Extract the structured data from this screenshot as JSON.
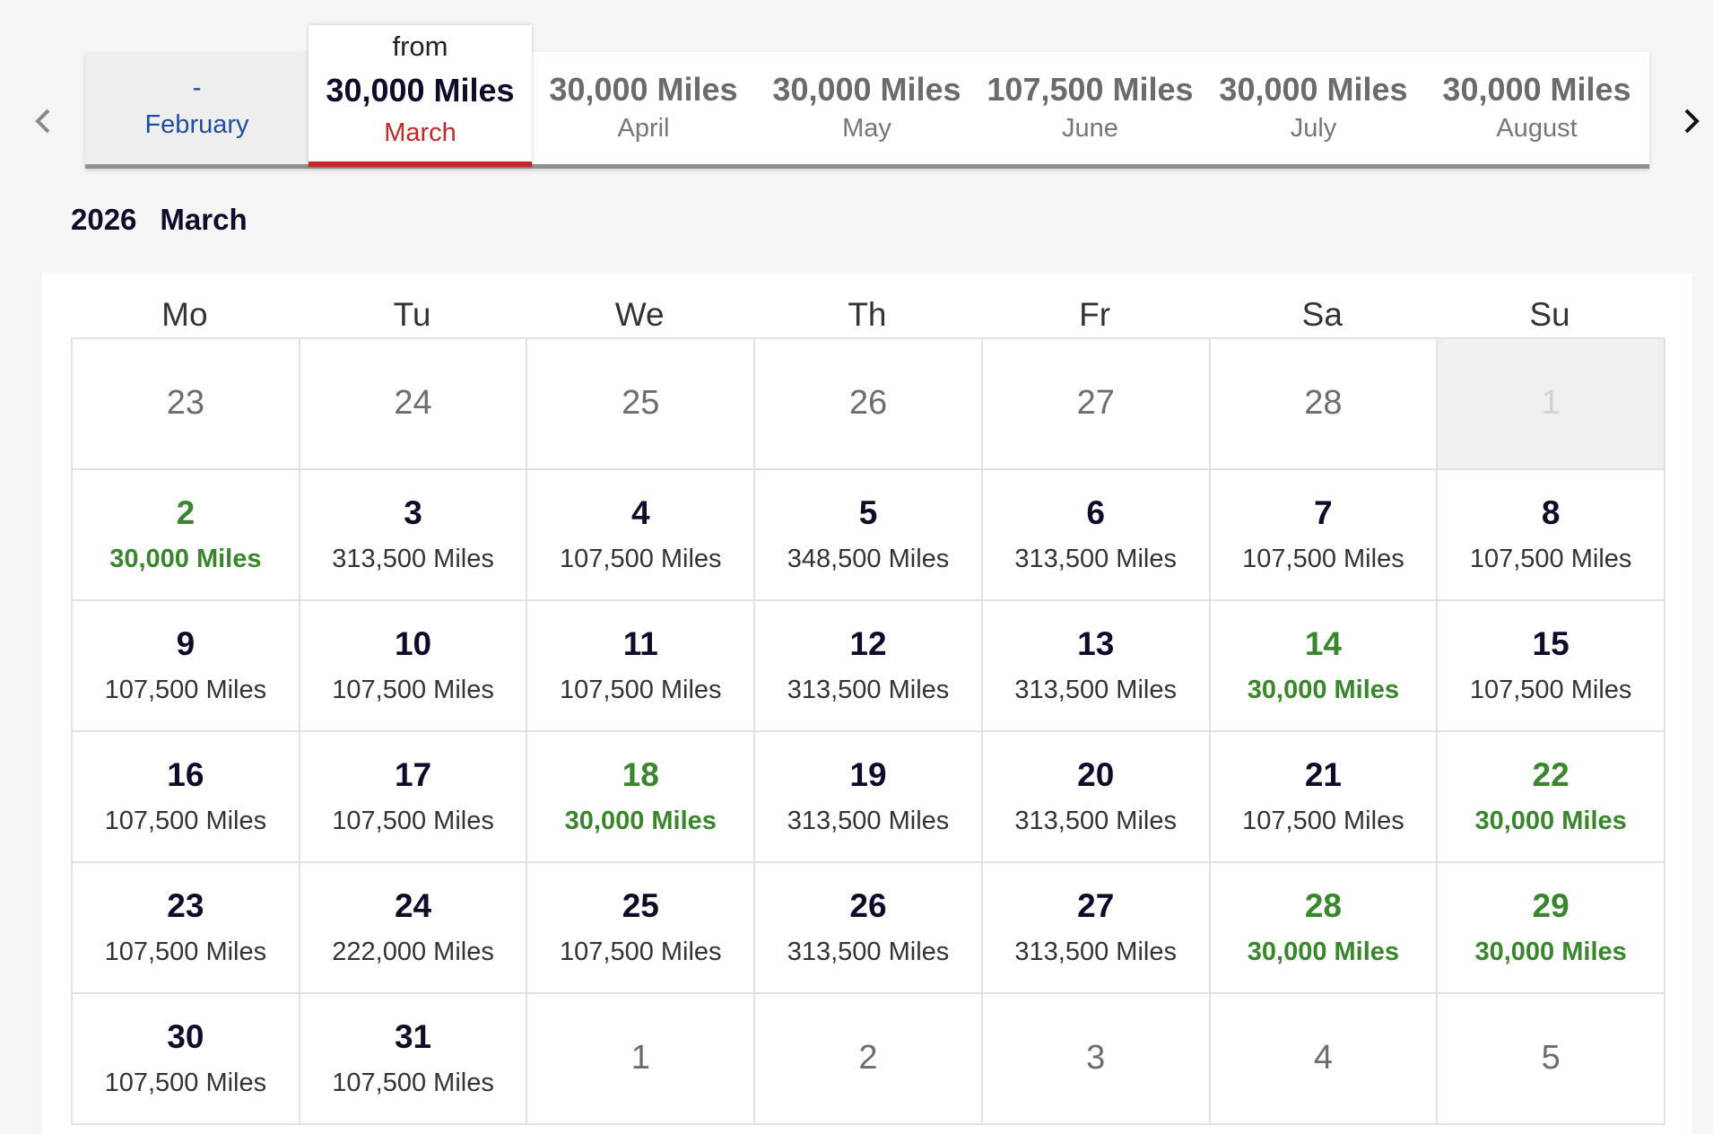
{
  "month_tabs": {
    "prev": {
      "dash": "-",
      "month": "February"
    },
    "active": {
      "from": "from",
      "miles": "30,000 Miles",
      "month": "March"
    },
    "others": [
      {
        "miles": "30,000 Miles",
        "month": "April"
      },
      {
        "miles": "30,000 Miles",
        "month": "May"
      },
      {
        "miles": "107,500 Miles",
        "month": "June"
      },
      {
        "miles": "30,000 Miles",
        "month": "July"
      },
      {
        "miles": "30,000 Miles",
        "month": "August"
      }
    ]
  },
  "period": {
    "year": "2026",
    "month": "March"
  },
  "colors": {
    "accent_red": "#c8262a",
    "deal_green": "#3a862d",
    "link_blue": "#1f4e9e",
    "navy": "#0d0d2b"
  },
  "icons": {
    "prev": "chevron-left-icon",
    "next": "chevron-right-icon"
  },
  "weekdays": [
    "Mo",
    "Tu",
    "We",
    "Th",
    "Fr",
    "Sa",
    "Su"
  ],
  "days": [
    {
      "day": "23",
      "price": "",
      "state": "other"
    },
    {
      "day": "24",
      "price": "",
      "state": "other"
    },
    {
      "day": "25",
      "price": "",
      "state": "other"
    },
    {
      "day": "26",
      "price": "",
      "state": "other"
    },
    {
      "day": "27",
      "price": "",
      "state": "other"
    },
    {
      "day": "28",
      "price": "",
      "state": "other"
    },
    {
      "day": "1",
      "price": "",
      "state": "disabled"
    },
    {
      "day": "2",
      "price": "30,000 Miles",
      "state": "deal"
    },
    {
      "day": "3",
      "price": "313,500 Miles",
      "state": "normal"
    },
    {
      "day": "4",
      "price": "107,500 Miles",
      "state": "normal"
    },
    {
      "day": "5",
      "price": "348,500 Miles",
      "state": "normal"
    },
    {
      "day": "6",
      "price": "313,500 Miles",
      "state": "normal"
    },
    {
      "day": "7",
      "price": "107,500 Miles",
      "state": "normal"
    },
    {
      "day": "8",
      "price": "107,500 Miles",
      "state": "normal"
    },
    {
      "day": "9",
      "price": "107,500 Miles",
      "state": "normal"
    },
    {
      "day": "10",
      "price": "107,500 Miles",
      "state": "normal"
    },
    {
      "day": "11",
      "price": "107,500 Miles",
      "state": "normal"
    },
    {
      "day": "12",
      "price": "313,500 Miles",
      "state": "normal"
    },
    {
      "day": "13",
      "price": "313,500 Miles",
      "state": "normal"
    },
    {
      "day": "14",
      "price": "30,000 Miles",
      "state": "deal"
    },
    {
      "day": "15",
      "price": "107,500 Miles",
      "state": "normal"
    },
    {
      "day": "16",
      "price": "107,500 Miles",
      "state": "normal"
    },
    {
      "day": "17",
      "price": "107,500 Miles",
      "state": "normal"
    },
    {
      "day": "18",
      "price": "30,000 Miles",
      "state": "deal"
    },
    {
      "day": "19",
      "price": "313,500 Miles",
      "state": "normal"
    },
    {
      "day": "20",
      "price": "313,500 Miles",
      "state": "normal"
    },
    {
      "day": "21",
      "price": "107,500 Miles",
      "state": "normal"
    },
    {
      "day": "22",
      "price": "30,000 Miles",
      "state": "deal"
    },
    {
      "day": "23",
      "price": "107,500 Miles",
      "state": "normal"
    },
    {
      "day": "24",
      "price": "222,000 Miles",
      "state": "normal"
    },
    {
      "day": "25",
      "price": "107,500 Miles",
      "state": "normal"
    },
    {
      "day": "26",
      "price": "313,500 Miles",
      "state": "normal"
    },
    {
      "day": "27",
      "price": "313,500 Miles",
      "state": "normal"
    },
    {
      "day": "28",
      "price": "30,000 Miles",
      "state": "deal"
    },
    {
      "day": "29",
      "price": "30,000 Miles",
      "state": "deal"
    },
    {
      "day": "30",
      "price": "107,500 Miles",
      "state": "normal"
    },
    {
      "day": "31",
      "price": "107,500 Miles",
      "state": "normal"
    },
    {
      "day": "1",
      "price": "",
      "state": "other"
    },
    {
      "day": "2",
      "price": "",
      "state": "other"
    },
    {
      "day": "3",
      "price": "",
      "state": "other"
    },
    {
      "day": "4",
      "price": "",
      "state": "other"
    },
    {
      "day": "5",
      "price": "",
      "state": "other"
    }
  ]
}
